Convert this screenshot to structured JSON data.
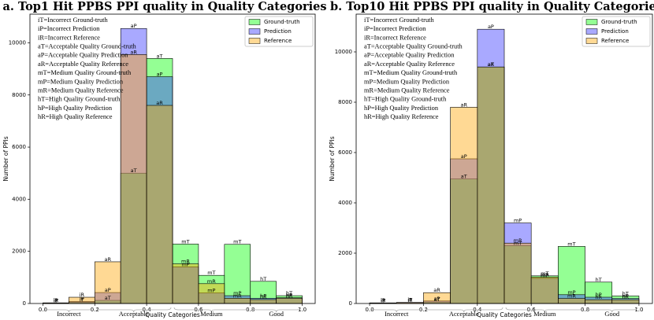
{
  "chart_data": [
    {
      "type": "histogram",
      "title": "a. Top1 Hit PPBS PPI quality in Quality Categories",
      "x_label": "Quality Categories",
      "y_label": "Number of PPIs",
      "bins": [
        0,
        0.1,
        0.2,
        0.3,
        0.4,
        0.5,
        0.6,
        0.7,
        0.8,
        0.9,
        1.0
      ],
      "series": [
        {
          "name": "Ground-truth",
          "color": "#00ff00",
          "values": [
            20,
            50,
            120,
            5000,
            9400,
            2280,
            1080,
            2270,
            850,
            300
          ],
          "labels": [
            "iT",
            "iT",
            "aT",
            "aT",
            "aT",
            "mT",
            "mT",
            "mT",
            "hT",
            "hT"
          ]
        },
        {
          "name": "Prediction",
          "color": "#3333ff",
          "values": [
            15,
            80,
            420,
            10550,
            8700,
            1400,
            400,
            300,
            200,
            220
          ],
          "labels": [
            "iP",
            "iP",
            "aP",
            "aP",
            "aP",
            "mP",
            "mP",
            "mP",
            "hP",
            "hP"
          ]
        },
        {
          "name": "Reference",
          "color": "#ffa500",
          "values": [
            25,
            240,
            1600,
            9550,
            7600,
            1520,
            760,
            200,
            150,
            200
          ],
          "labels": [
            "iR",
            "iR",
            "aR",
            "aR",
            "aR",
            "mR",
            "mR",
            "mR",
            "hR",
            "hR"
          ]
        }
      ],
      "xlim": [
        -0.05,
        1.05
      ],
      "ylim": [
        0,
        11100
      ],
      "xticks": [
        {
          "value": 0,
          "label": "0.0"
        },
        0.2,
        0.4,
        0.6,
        0.8,
        {
          "value": 1,
          "label": "1.0"
        }
      ],
      "yticks": [
        0,
        2000,
        4000,
        6000,
        8000,
        10000
      ],
      "grid": false,
      "legend": "upper right",
      "category_groups": [
        {
          "label": "Incorrect",
          "range": [
            0,
            0.2
          ]
        },
        {
          "label": "Acceptable",
          "range": [
            0.2,
            0.5
          ]
        },
        {
          "label": "Medium",
          "range": [
            0.5,
            0.8
          ]
        },
        {
          "label": "Good",
          "range": [
            0.8,
            1.0
          ]
        }
      ],
      "annotation_lines": [
        "iT=Incorrect Ground-truth",
        "iP=Incorrect Prediction",
        "iR=Incorrect Reference",
        "aT=Acceptable Quality Ground-truth",
        "aP=Acceptable Quality Prediction",
        "aR=Acceptable Quality Reference",
        "mT=Medium Quality Ground-truth",
        "mP=Medium Quality Prediction",
        "mR=Medium Quality Reference",
        "hT=High Quality Ground-truth",
        "hP=High Quality Prediction",
        "hR=High Quality Reference"
      ]
    },
    {
      "type": "histogram",
      "title": "b. Top10 Hit PPBS PPI quality in Quality Categories",
      "x_label": "Quality Categories",
      "y_label": "Number of PPIs",
      "bins": [
        0,
        0.1,
        0.2,
        0.3,
        0.4,
        0.5,
        0.6,
        0.7,
        0.8,
        0.9,
        1.0
      ],
      "series": [
        {
          "name": "Ground-truth",
          "color": "#00ff00",
          "values": [
            20,
            30,
            60,
            4950,
            9400,
            2300,
            1100,
            2270,
            850,
            300
          ],
          "labels": [
            "iT",
            "iT",
            "aT",
            "aT",
            "aT",
            "mT",
            "mT",
            "mT",
            "hT",
            "hT"
          ]
        },
        {
          "name": "Prediction",
          "color": "#3333ff",
          "values": [
            15,
            40,
            100,
            5750,
            10900,
            3200,
            1000,
            350,
            250,
            200
          ],
          "labels": [
            "iP",
            "iP",
            "aP",
            "aP",
            "aP",
            "mP",
            "mP",
            "mP",
            "hP",
            "hP"
          ]
        },
        {
          "name": "Reference",
          "color": "#ffa500",
          "values": [
            25,
            40,
            430,
            7800,
            9400,
            2400,
            1050,
            200,
            150,
            150
          ],
          "labels": [
            "iR",
            "iR",
            "aR",
            "aR",
            "aR",
            "mR",
            "mR",
            "mR",
            "hR",
            "hR"
          ]
        }
      ],
      "xlim": [
        -0.05,
        1.05
      ],
      "ylim": [
        0,
        11500
      ],
      "xticks": [
        {
          "value": 0,
          "label": "0.0"
        },
        0.2,
        0.4,
        0.6,
        0.8,
        {
          "value": 1,
          "label": "1.0"
        }
      ],
      "yticks": [
        0,
        2000,
        4000,
        6000,
        8000,
        10000
      ],
      "grid": false,
      "legend": "upper right",
      "category_groups": [
        {
          "label": "Incorrect",
          "range": [
            0,
            0.2
          ]
        },
        {
          "label": "Acceptable",
          "range": [
            0.2,
            0.5
          ]
        },
        {
          "label": "Medium",
          "range": [
            0.5,
            0.8
          ]
        },
        {
          "label": "Good",
          "range": [
            0.8,
            1.0
          ]
        }
      ],
      "annotation_lines": [
        "iT=Incorrect Ground-truth",
        "iP=Incorrect Prediction",
        "iR=Incorrect Reference",
        "aT=Acceptable Quality Ground-truth",
        "aP=Acceptable Quality Prediction",
        "aR=Acceptable Quality Reference",
        "mT=Medium Quality Ground-truth",
        "mP=Medium Quality Prediction",
        "mR=Medium Quality Reference",
        "hT=High Quality Ground-truth",
        "hP=High Quality Prediction",
        "hR=High Quality Reference"
      ]
    }
  ]
}
